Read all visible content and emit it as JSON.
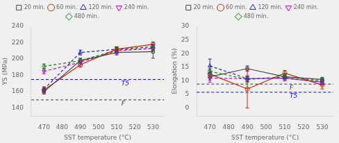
{
  "chart_data": [
    {
      "type": "line",
      "x_label": "SST temperature (°C)",
      "y_label": "YS (MPa)",
      "x": [
        470,
        490,
        510,
        530
      ],
      "xlim": [
        463,
        536
      ],
      "xticks": [
        470,
        480,
        490,
        500,
        510,
        520,
        530
      ],
      "ylim": [
        130,
        240
      ],
      "yticks": [
        140,
        160,
        180,
        200,
        220,
        240
      ],
      "grid": false,
      "legend": "top",
      "series": [
        {
          "name": "20 min.",
          "color": "#444444",
          "marker": "square",
          "line_style": "solid",
          "values": [
            160,
            198,
            208,
            209
          ],
          "yerr": [
            3,
            3,
            3,
            8
          ]
        },
        {
          "name": "60 min.",
          "color": "#cc2200",
          "marker": "circle",
          "line_style": "solid",
          "values": [
            162,
            193,
            212,
            218
          ],
          "yerr": [
            3,
            3,
            3,
            3
          ]
        },
        {
          "name": "120 min.",
          "color": "#2222cc",
          "marker": "triangle-up",
          "line_style": "dashed",
          "values": [
            163,
            208,
            212,
            215
          ],
          "yerr": [
            3,
            3,
            3,
            3
          ]
        },
        {
          "name": "240 min.",
          "color": "#cc00cc",
          "marker": "triangle-down",
          "line_style": "dashed",
          "values": [
            185,
            196,
            210,
            213
          ],
          "yerr": [
            3,
            3,
            3,
            3
          ]
        },
        {
          "name": "480 min.",
          "color": "#008800",
          "marker": "diamond",
          "line_style": "dashed",
          "values": [
            191,
            198,
            211,
            213
          ],
          "yerr": [
            3,
            3,
            3,
            3
          ]
        }
      ],
      "annotations": [
        {
          "text": "T5",
          "y": 175,
          "color": "blue",
          "line_style": "dashed"
        },
        {
          "text": "F",
          "y": 150,
          "color": "#333333",
          "line_style": "dashed"
        }
      ]
    },
    {
      "type": "line",
      "x_label": "SST temperature (°C)",
      "y_label": "Elongation (%)",
      "x": [
        470,
        490,
        510,
        530
      ],
      "xlim": [
        463,
        536
      ],
      "xticks": [
        470,
        480,
        490,
        500,
        510,
        520,
        530
      ],
      "ylim": [
        -3,
        30
      ],
      "yticks": [
        0,
        5,
        10,
        15,
        20,
        25,
        30
      ],
      "grid": false,
      "legend": "top",
      "series": [
        {
          "name": "20 min.",
          "color": "#444444",
          "marker": "square",
          "line_style": "solid",
          "values": [
            11.5,
            14.5,
            11.5,
            10.5
          ],
          "yerr": [
            1.2,
            1.0,
            1.0,
            0.8
          ]
        },
        {
          "name": "60 min.",
          "color": "#cc2200",
          "marker": "circle",
          "line_style": "solid",
          "values": [
            12.5,
            7.0,
            12.8,
            8.5
          ],
          "yerr": [
            1.5,
            7.0,
            1.0,
            1.5
          ]
        },
        {
          "name": "120 min.",
          "color": "#2222cc",
          "marker": "triangle-up",
          "line_style": "dashed",
          "values": [
            15.5,
            10.8,
            11.0,
            9.5
          ],
          "yerr": [
            2.5,
            1.0,
            1.0,
            1.0
          ]
        },
        {
          "name": "240 min.",
          "color": "#cc00cc",
          "marker": "triangle-down",
          "line_style": "dashed",
          "values": [
            11.0,
            10.8,
            11.0,
            9.5
          ],
          "yerr": [
            1.5,
            1.0,
            1.0,
            0.8
          ]
        },
        {
          "name": "480 min.",
          "color": "#008800",
          "marker": "diamond",
          "line_style": "dashed",
          "values": [
            13.5,
            10.5,
            11.5,
            10.0
          ],
          "yerr": [
            1.0,
            1.0,
            1.0,
            0.8
          ]
        }
      ],
      "annotations": [
        {
          "text": "T5",
          "y": 5.8,
          "color": "blue",
          "line_style": "dashed"
        },
        {
          "text": "F",
          "y": 8.8,
          "color": "#333333",
          "line_style": "dashed"
        }
      ]
    }
  ]
}
